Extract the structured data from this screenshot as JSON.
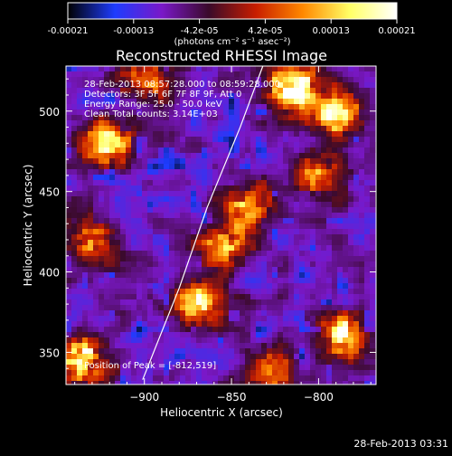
{
  "chart_data": {
    "type": "heatmap",
    "title": "Reconstructed RHESSI Image",
    "xlabel": "Heliocentric X (arcsec)",
    "ylabel": "Heliocentric Y (arcsec)",
    "x_ticks": [
      -900,
      -850,
      -800
    ],
    "y_ticks": [
      350,
      400,
      450,
      500
    ],
    "xlim": [
      -945,
      -767
    ],
    "ylim": [
      330,
      528
    ],
    "colorbar": {
      "ticks": [
        "-0.00021",
        "-0.00013",
        "-4.2e-05",
        "4.2e-05",
        "0.00013",
        "0.00021"
      ],
      "unit": "(photons cm⁻² s⁻¹ asec⁻²)",
      "range": [
        -0.00021,
        0.00021
      ],
      "colormap": [
        "#000000",
        "#1e3cff",
        "#7a18c8",
        "#3a0a2a",
        "#c81e00",
        "#ff8800",
        "#ffff66",
        "#ffffff"
      ]
    },
    "annotations": {
      "time_range": "28-Feb-2013 08:57:28.000 to 08:59:28.000",
      "detectors": "Detectors: 3F 5F 6F 7F 8F 9F, Att 0",
      "energy": "Energy Range: 25.0 - 50.0 keV",
      "method": "Clean     Total counts: 3.14E+03",
      "peak": "Position of Peak = [-812,519]"
    },
    "limb_curve_points": [
      [
        -901,
        333
      ],
      [
        -880,
        390
      ],
      [
        -864,
        440
      ],
      [
        -845,
        490
      ],
      [
        -832,
        528
      ]
    ],
    "hot_spots": [
      {
        "x": -815,
        "y": 515,
        "intensity": 1.0
      },
      {
        "x": -790,
        "y": 500,
        "intensity": 0.85
      },
      {
        "x": -935,
        "y": 345,
        "intensity": 0.9
      },
      {
        "x": -785,
        "y": 360,
        "intensity": 0.8
      },
      {
        "x": -870,
        "y": 380,
        "intensity": 0.75
      },
      {
        "x": -855,
        "y": 415,
        "intensity": 0.7
      },
      {
        "x": -840,
        "y": 440,
        "intensity": 0.6
      },
      {
        "x": -920,
        "y": 480,
        "intensity": 0.75
      },
      {
        "x": -900,
        "y": 520,
        "intensity": 0.55
      },
      {
        "x": -930,
        "y": 420,
        "intensity": 0.5
      },
      {
        "x": -800,
        "y": 460,
        "intensity": 0.55
      },
      {
        "x": -825,
        "y": 340,
        "intensity": 0.5
      }
    ]
  },
  "footer_timestamp": "28-Feb-2013 03:31"
}
